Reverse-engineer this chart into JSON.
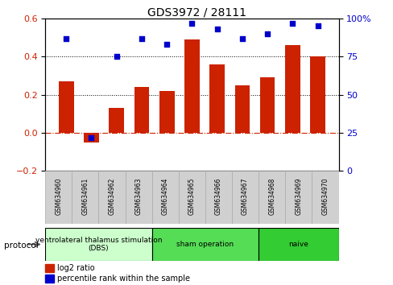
{
  "title": "GDS3972 / 28111",
  "samples": [
    "GSM634960",
    "GSM634961",
    "GSM634962",
    "GSM634963",
    "GSM634964",
    "GSM634965",
    "GSM634966",
    "GSM634967",
    "GSM634968",
    "GSM634969",
    "GSM634970"
  ],
  "log2_ratio": [
    0.27,
    -0.05,
    0.13,
    0.24,
    0.22,
    0.49,
    0.36,
    0.25,
    0.29,
    0.46,
    0.4
  ],
  "percentile_rank": [
    87,
    22,
    75,
    87,
    83,
    97,
    93,
    87,
    90,
    97,
    95
  ],
  "bar_color": "#cc2200",
  "dot_color": "#0000cc",
  "ylim_left": [
    -0.2,
    0.6
  ],
  "ylim_right": [
    0,
    100
  ],
  "yticks_left": [
    -0.2,
    0.0,
    0.2,
    0.4,
    0.6
  ],
  "yticks_right": [
    0,
    25,
    50,
    75,
    100
  ],
  "ytick_labels_right": [
    "0",
    "25",
    "50",
    "75",
    "100%"
  ],
  "hline_zero_color": "#cc2200",
  "hline_dotted_vals": [
    0.2,
    0.4
  ],
  "groups": [
    {
      "label": "ventrolateral thalamus stimulation\n(DBS)",
      "start": 0,
      "end": 3,
      "color": "#ccffcc"
    },
    {
      "label": "sham operation",
      "start": 4,
      "end": 7,
      "color": "#55dd55"
    },
    {
      "label": "naive",
      "start": 8,
      "end": 10,
      "color": "#33cc33"
    }
  ],
  "legend_bar_label": "log2 ratio",
  "legend_dot_label": "percentile rank within the sample",
  "protocol_label": "protocol",
  "bg_color": "#ffffff",
  "plot_bg_color": "#ffffff"
}
